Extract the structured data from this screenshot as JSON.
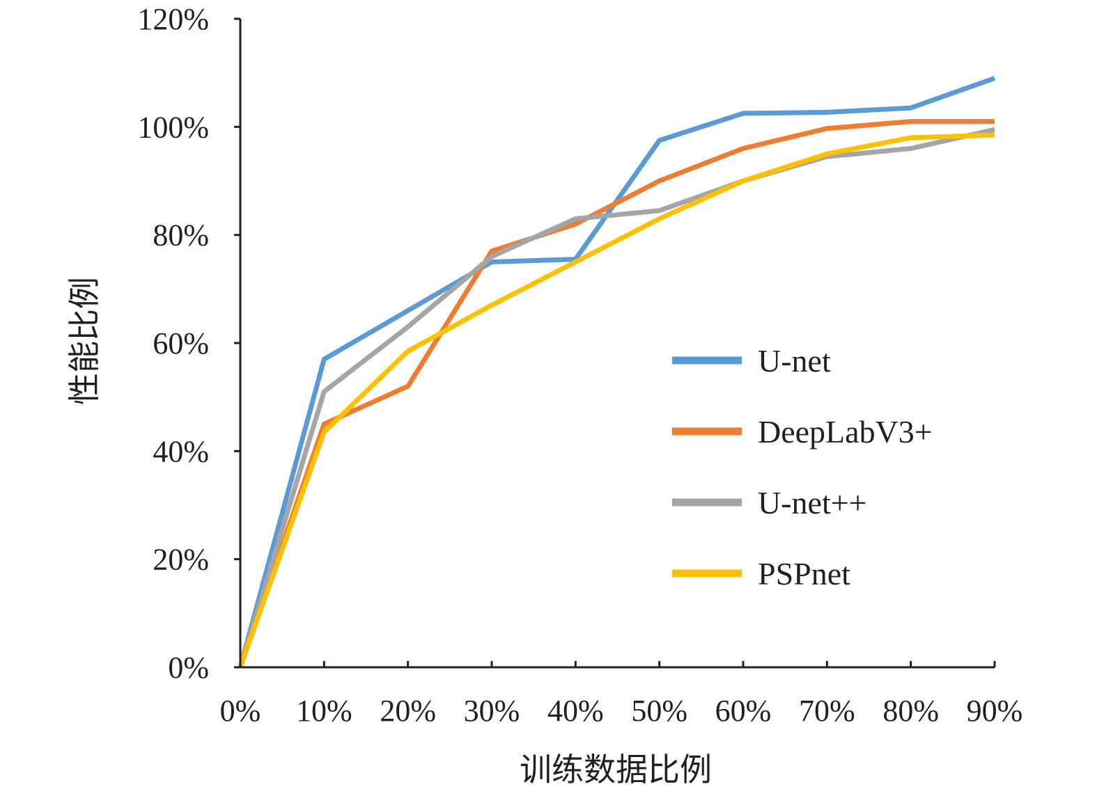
{
  "chart_data": {
    "type": "line",
    "title": "",
    "xlabel": "训练数据比例",
    "ylabel": "性能比例",
    "categories": [
      "0%",
      "10%",
      "20%",
      "30%",
      "40%",
      "50%",
      "60%",
      "70%",
      "80%",
      "90%"
    ],
    "x": [
      0,
      10,
      20,
      30,
      40,
      50,
      60,
      70,
      80,
      90
    ],
    "yticks": [
      {
        "value": 0,
        "label": "0%"
      },
      {
        "value": 20,
        "label": "20%"
      },
      {
        "value": 40,
        "label": "40%"
      },
      {
        "value": 60,
        "label": "60%"
      },
      {
        "value": 80,
        "label": "80%"
      },
      {
        "value": 100,
        "label": "100%"
      },
      {
        "value": 120,
        "label": "120%"
      }
    ],
    "ylim": [
      0,
      120
    ],
    "grid": false,
    "legend_position": "right",
    "series": [
      {
        "name": "U-net",
        "color": "#5b9bd5",
        "values": [
          0,
          57,
          66,
          75,
          75.5,
          97.5,
          102.5,
          102.7,
          103.5,
          109
        ]
      },
      {
        "name": "DeepLabV3+",
        "color": "#ed7d31",
        "values": [
          0,
          45,
          52,
          77,
          82,
          90,
          96,
          99.7,
          101,
          101
        ]
      },
      {
        "name": "U-net++",
        "color": "#a5a5a5",
        "values": [
          0,
          51,
          63,
          76,
          83,
          84.5,
          90,
          94.5,
          96,
          99.5
        ]
      },
      {
        "name": "PSPnet",
        "color": "#ffc000",
        "values": [
          0,
          43.5,
          58.5,
          67,
          75,
          83,
          90,
          95,
          98,
          98.5
        ]
      }
    ]
  }
}
